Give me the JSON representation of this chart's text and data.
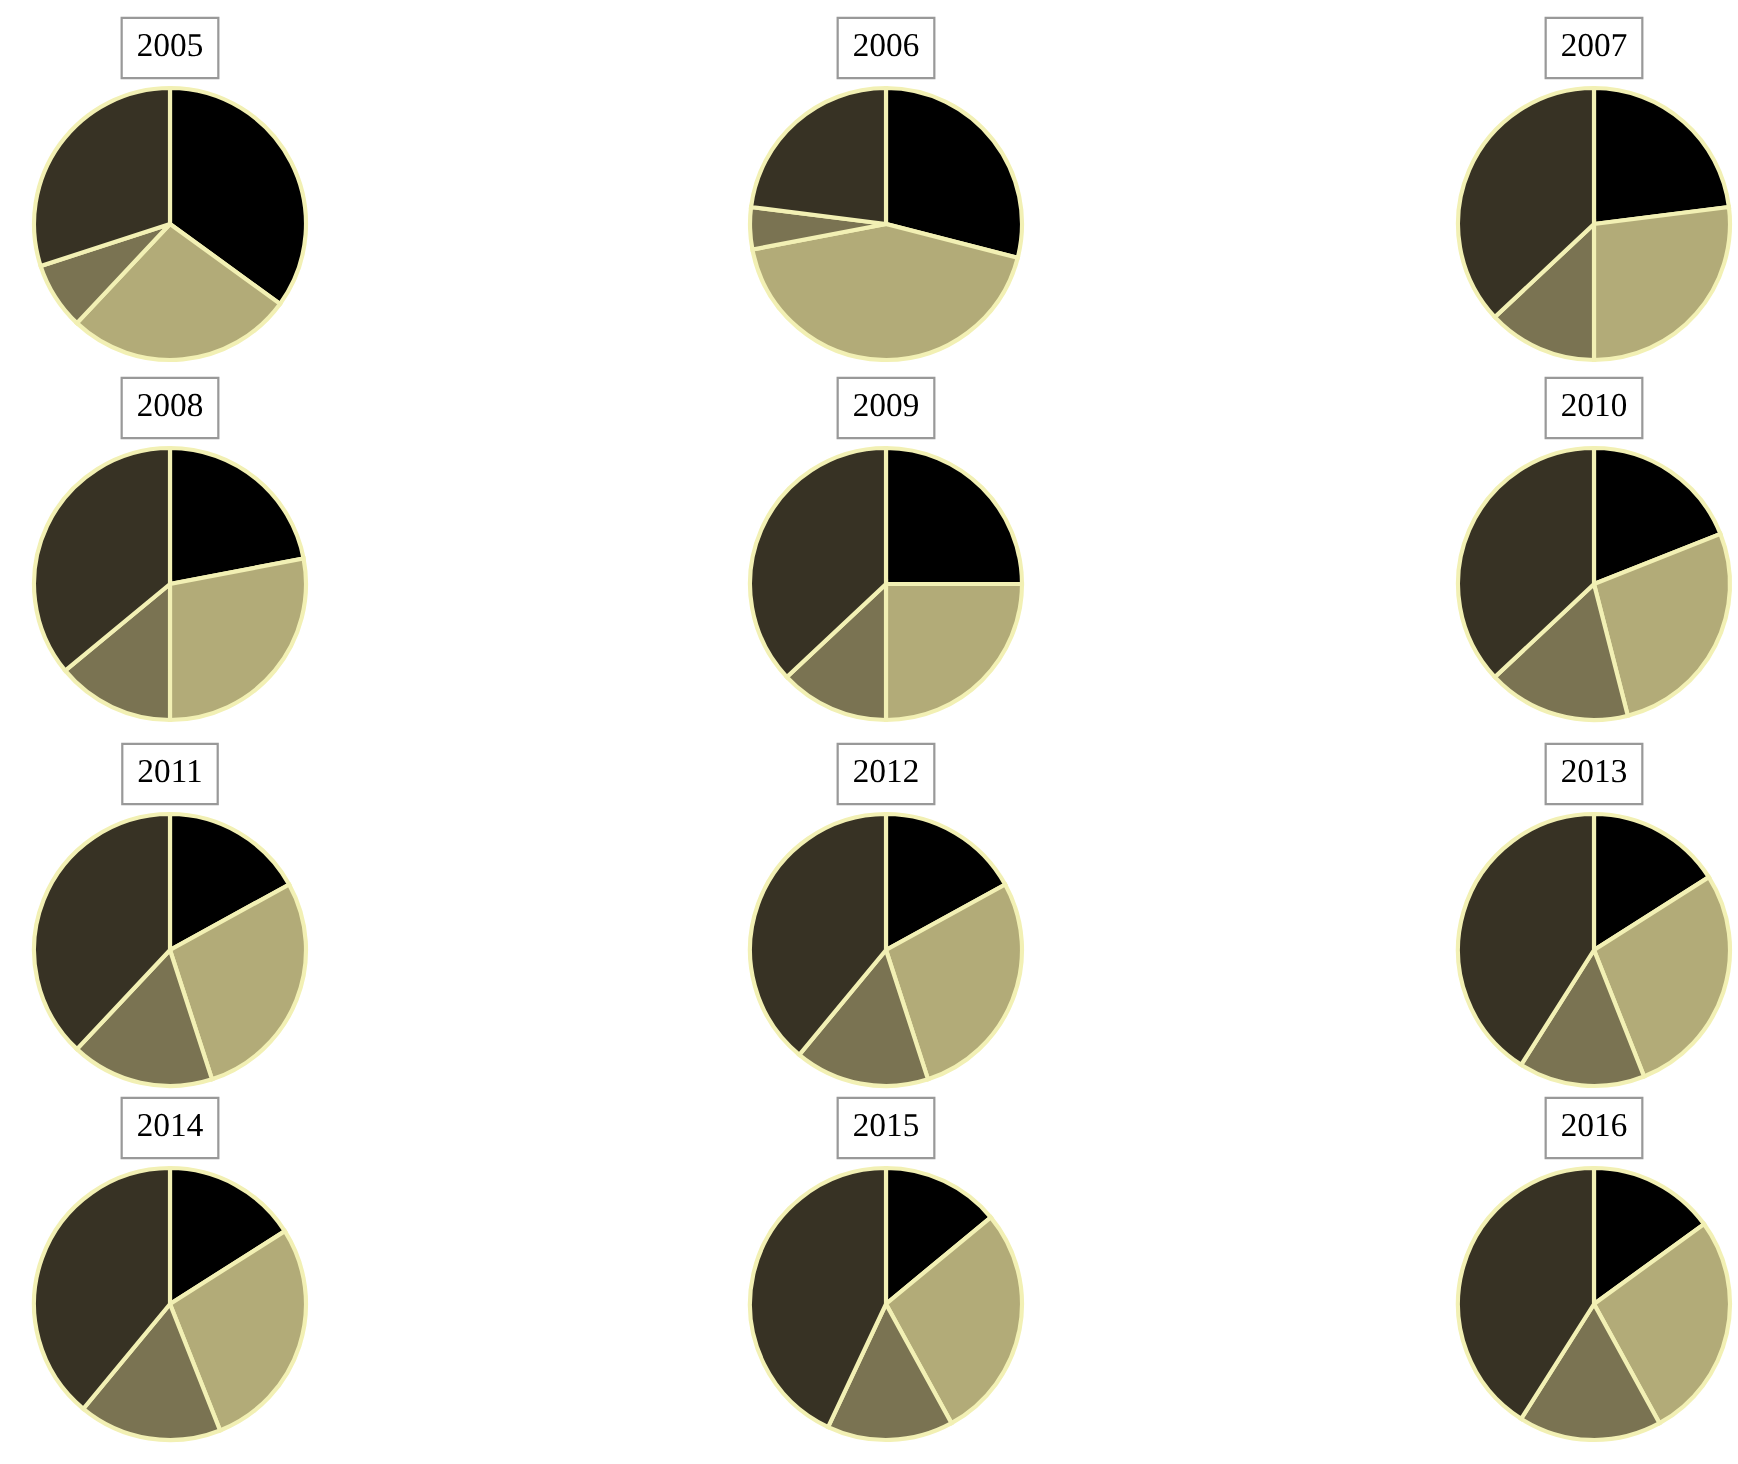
{
  "chart_data": [
    {
      "type": "pie",
      "title": "2005",
      "categories": [
        null,
        null,
        null,
        null
      ],
      "values": [
        35,
        27,
        8,
        30
      ],
      "colors": [
        "#000000",
        "#b2ab78",
        "#7a7352",
        "#373224"
      ]
    },
    {
      "type": "pie",
      "title": "2006",
      "categories": [
        null,
        null,
        null,
        null
      ],
      "values": [
        29,
        43,
        5,
        23
      ],
      "colors": [
        "#000000",
        "#b2ab78",
        "#7a7352",
        "#373224"
      ]
    },
    {
      "type": "pie",
      "title": "2007",
      "categories": [
        null,
        null,
        null,
        null
      ],
      "values": [
        23,
        27,
        13,
        37
      ],
      "colors": [
        "#000000",
        "#b2ab78",
        "#7a7352",
        "#373224"
      ]
    },
    {
      "type": "pie",
      "title": "2008",
      "categories": [
        null,
        null,
        null,
        null
      ],
      "values": [
        22,
        28,
        14,
        36
      ],
      "colors": [
        "#000000",
        "#b2ab78",
        "#7a7352",
        "#373224"
      ]
    },
    {
      "type": "pie",
      "title": "2009",
      "categories": [
        null,
        null,
        null,
        null
      ],
      "values": [
        25,
        25,
        13,
        37
      ],
      "colors": [
        "#000000",
        "#b2ab78",
        "#7a7352",
        "#373224"
      ]
    },
    {
      "type": "pie",
      "title": "2010",
      "categories": [
        null,
        null,
        null,
        null
      ],
      "values": [
        19,
        27,
        17,
        37
      ],
      "colors": [
        "#000000",
        "#b2ab78",
        "#7a7352",
        "#373224"
      ]
    },
    {
      "type": "pie",
      "title": "2011",
      "categories": [
        null,
        null,
        null,
        null
      ],
      "values": [
        17,
        28,
        17,
        38
      ],
      "colors": [
        "#000000",
        "#b2ab78",
        "#7a7352",
        "#373224"
      ]
    },
    {
      "type": "pie",
      "title": "2012",
      "categories": [
        null,
        null,
        null,
        null
      ],
      "values": [
        17,
        28,
        16,
        39
      ],
      "colors": [
        "#000000",
        "#b2ab78",
        "#7a7352",
        "#373224"
      ]
    },
    {
      "type": "pie",
      "title": "2013",
      "categories": [
        null,
        null,
        null,
        null
      ],
      "values": [
        16,
        28,
        15,
        41
      ],
      "colors": [
        "#000000",
        "#b2ab78",
        "#7a7352",
        "#373224"
      ]
    },
    {
      "type": "pie",
      "title": "2014",
      "categories": [
        null,
        null,
        null,
        null
      ],
      "values": [
        16,
        28,
        17,
        39
      ],
      "colors": [
        "#000000",
        "#b2ab78",
        "#7a7352",
        "#373224"
      ]
    },
    {
      "type": "pie",
      "title": "2015",
      "categories": [
        null,
        null,
        null,
        null
      ],
      "values": [
        14,
        28,
        15,
        43
      ],
      "colors": [
        "#000000",
        "#b2ab78",
        "#7a7352",
        "#373224"
      ]
    },
    {
      "type": "pie",
      "title": "2016",
      "categories": [
        null,
        null,
        null,
        null
      ],
      "values": [
        15,
        27,
        17,
        41
      ],
      "colors": [
        "#000000",
        "#b2ab78",
        "#7a7352",
        "#373224"
      ]
    }
  ]
}
